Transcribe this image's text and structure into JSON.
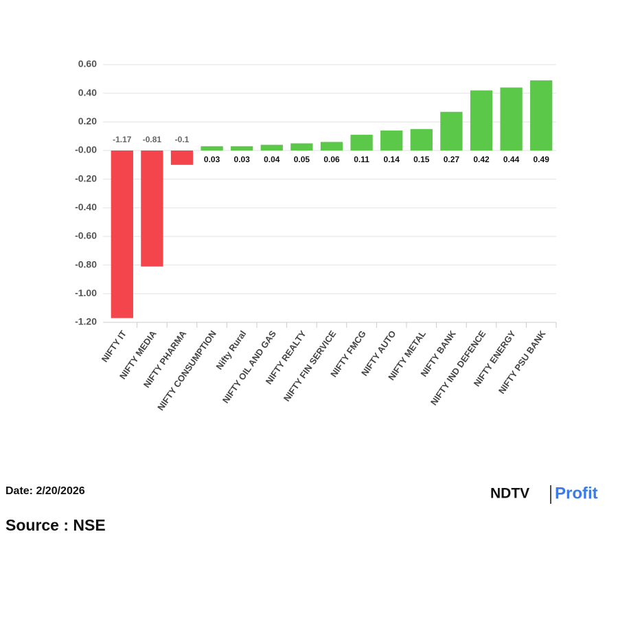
{
  "chart_data": {
    "type": "bar",
    "categories": [
      "NIFTY IT",
      "NIFTY MEDIA",
      "NIFTY PHARMA",
      "NIFTY CONSUMPTION",
      "Nifty Rural",
      "NIFTY OIL AND GAS",
      "NIFTY REALTY",
      "NIFTY FIN SERVICE",
      "NIFTY FMCG",
      "NIFTY AUTO",
      "NIFTY METAL",
      "NIFTY BANK",
      "NIFTY IND DEFENCE",
      "NIFTY ENERGY",
      "NIFTY PSU BANK"
    ],
    "values": [
      -1.17,
      -0.81,
      -0.1,
      0.03,
      0.03,
      0.04,
      0.05,
      0.06,
      0.11,
      0.14,
      0.15,
      0.27,
      0.42,
      0.44,
      0.49
    ],
    "positive_color": "#5cc84a",
    "negative_color": "#f4444c",
    "ylim": [
      -1.2,
      0.6
    ],
    "yticks": [
      {
        "value": -1.2,
        "label": "-1.20"
      },
      {
        "value": -1.0,
        "label": "-1.00"
      },
      {
        "value": -0.8,
        "label": "-0.80"
      },
      {
        "value": -0.6,
        "label": "-0.60"
      },
      {
        "value": -0.4,
        "label": "-0.40"
      },
      {
        "value": -0.2,
        "label": "-0.20"
      },
      {
        "value": 0,
        "label": "-0.00"
      },
      {
        "value": 0.2,
        "label": "0.20"
      },
      {
        "value": 0.4,
        "label": "0.40"
      },
      {
        "value": 0.6,
        "label": "0.60"
      }
    ],
    "grid": true
  },
  "footer": {
    "date": "Date: 2/20/2026",
    "source": "Source : NSE",
    "logo_left": "NDTV",
    "logo_right": "Profit"
  }
}
